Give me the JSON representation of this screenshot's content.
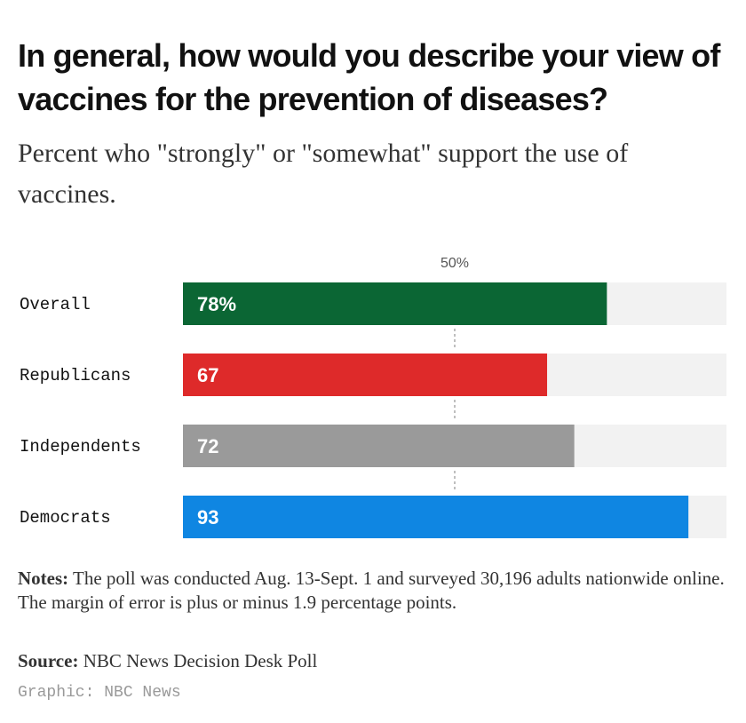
{
  "title": "In general, how would you describe your view of vaccines for the prevention of diseases?",
  "subtitle": "Percent who \"strongly\" or \"somewhat\" support the use of vaccines.",
  "notes": {
    "label": "Notes:",
    "text": " The poll was conducted Aug. 13-Sept. 1 and surveyed 30,196 adults nationwide online. The margin of error is plus or minus 1.9 percentage points."
  },
  "source": {
    "label": "Source:",
    "text": " NBC News Decision Desk Poll"
  },
  "credit": "Graphic: NBC News",
  "chart_data": {
    "type": "bar",
    "orientation": "horizontal",
    "categories": [
      "Overall",
      "Republicans",
      "Independents",
      "Democrats"
    ],
    "values": [
      78,
      67,
      72,
      93
    ],
    "value_labels": [
      "78%",
      "67",
      "72",
      "93"
    ],
    "colors": [
      "#0b6634",
      "#de2a2a",
      "#9a9a9a",
      "#0f86e2"
    ],
    "track_color": "#f2f2f2",
    "xlim": [
      0,
      100
    ],
    "reference_line": {
      "value": 50,
      "label": "50%"
    }
  }
}
